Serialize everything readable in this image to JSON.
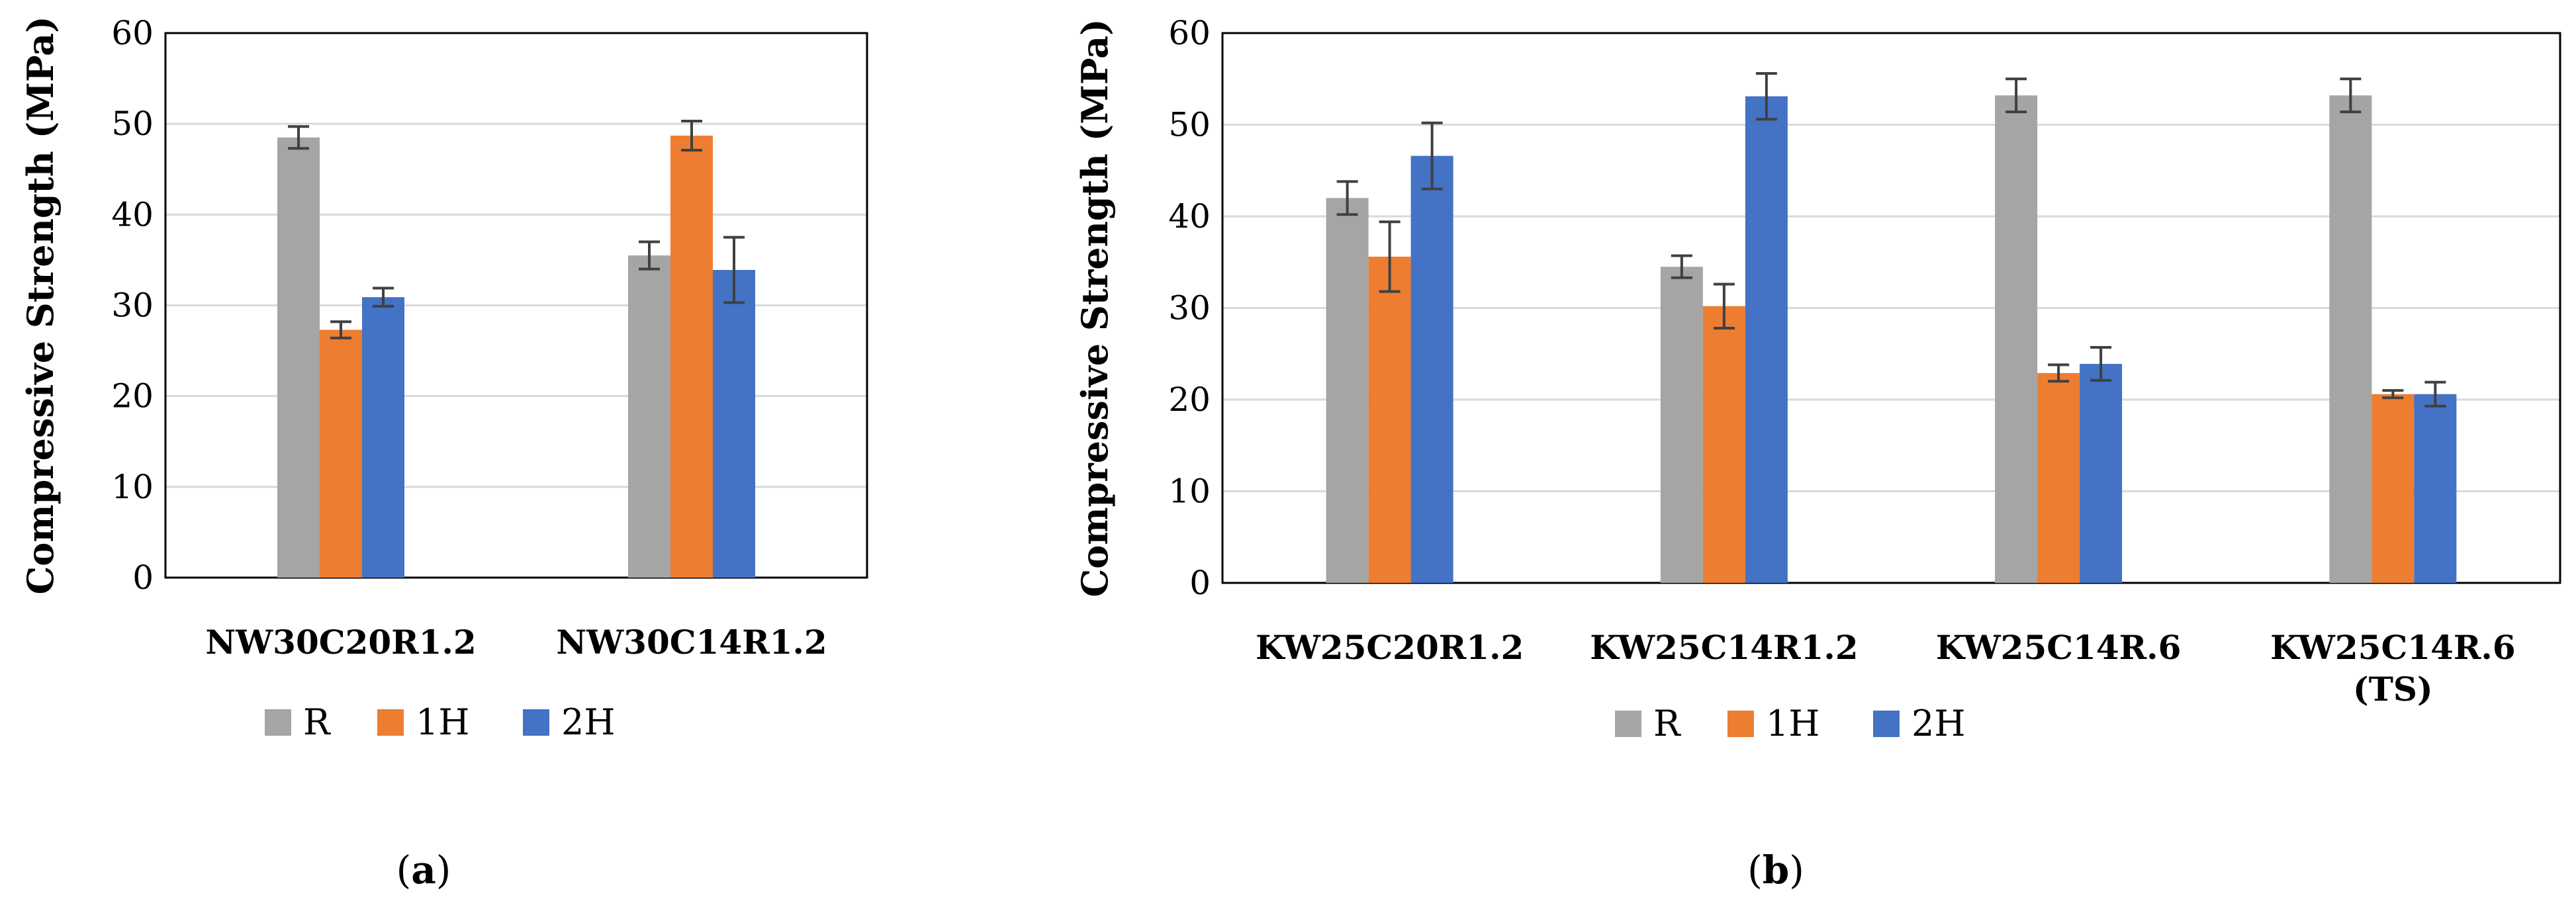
{
  "chart_data": [
    {
      "type": "bar",
      "title": "",
      "xlabel": "",
      "ylabel": "Compressive Strength (MPa)",
      "panel_label": "(a)",
      "ylim": [
        0,
        60
      ],
      "yticks": [
        0,
        10,
        20,
        30,
        40,
        50,
        60
      ],
      "grid": true,
      "legend_position": "bottom-left",
      "categories": [
        [
          "NW30C20R1.2"
        ],
        [
          "NW30C14R1.2"
        ]
      ],
      "series": [
        {
          "name": "R",
          "color": "#A5A5A5",
          "values": [
            48.5,
            35.5
          ],
          "error": [
            1.2,
            1.5
          ]
        },
        {
          "name": "1H",
          "color": "#ED7D31",
          "values": [
            27.3,
            48.7
          ],
          "error": [
            0.9,
            1.6
          ]
        },
        {
          "name": "2H",
          "color": "#4472C4",
          "values": [
            30.9,
            33.9
          ],
          "error": [
            1.0,
            3.6
          ]
        }
      ]
    },
    {
      "type": "bar",
      "title": "",
      "xlabel": "",
      "ylabel": "Compressive Strength (MPa)",
      "panel_label": "(b)",
      "ylim": [
        0,
        60
      ],
      "yticks": [
        0,
        10,
        20,
        30,
        40,
        50,
        60
      ],
      "grid": true,
      "legend_position": "bottom-center",
      "categories": [
        [
          "KW25C20R1.2"
        ],
        [
          "KW25C14R1.2"
        ],
        [
          "KW25C14R.6"
        ],
        [
          "KW25C14R.6",
          "(TS)"
        ]
      ],
      "series": [
        {
          "name": "R",
          "color": "#A5A5A5",
          "values": [
            42.0,
            34.5,
            53.2,
            53.2
          ],
          "error": [
            1.8,
            1.2,
            1.8,
            1.8
          ]
        },
        {
          "name": "1H",
          "color": "#ED7D31",
          "values": [
            35.6,
            30.2,
            22.9,
            20.6
          ],
          "error": [
            3.8,
            2.4,
            0.9,
            0.4
          ]
        },
        {
          "name": "2H",
          "color": "#4472C4",
          "values": [
            46.6,
            53.1,
            23.9,
            20.6
          ],
          "error": [
            3.6,
            2.5,
            1.8,
            1.3
          ]
        }
      ]
    }
  ]
}
